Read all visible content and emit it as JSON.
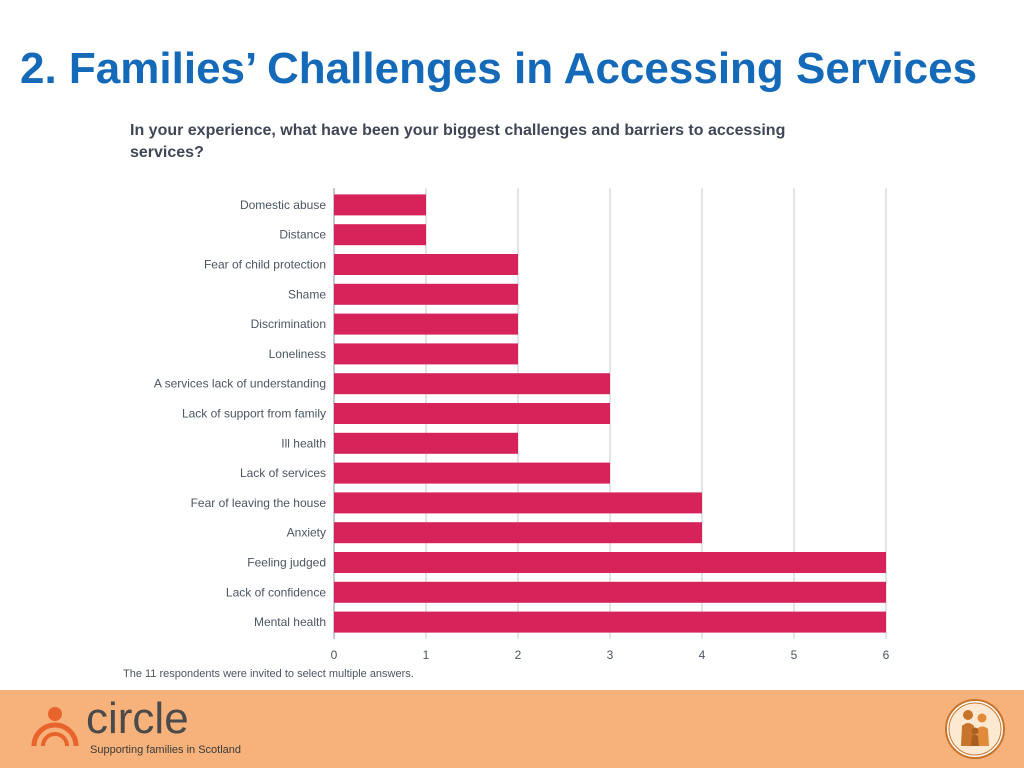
{
  "slide": {
    "title": "2. Families’ Challenges in Accessing Services"
  },
  "chart_data": {
    "type": "bar",
    "orientation": "horizontal",
    "title": "In your experience, what have been your biggest challenges and barriers to accessing services?",
    "categories": [
      "Domestic abuse",
      "Distance",
      "Fear of child protection",
      "Shame",
      "Discrimination",
      "Loneliness",
      "A services lack of understanding",
      "Lack of support from family",
      "Ill health",
      "Lack of services",
      "Fear of leaving the house",
      "Anxiety",
      "Feeling judged",
      "Lack of confidence",
      "Mental health"
    ],
    "values": [
      1,
      1,
      2,
      2,
      2,
      2,
      3,
      3,
      2,
      3,
      4,
      4,
      6,
      6,
      6
    ],
    "xticks": [
      0,
      1,
      2,
      3,
      4,
      5,
      6
    ],
    "xlim": [
      0,
      6
    ],
    "grid": true,
    "bar_color": "#d6235a",
    "note": "The 11 respondents were invited to select multiple answers."
  },
  "footer": {
    "logo_name": "circle",
    "logo_tagline": "Supporting families in Scotland",
    "band_color": "#f6b27a"
  }
}
